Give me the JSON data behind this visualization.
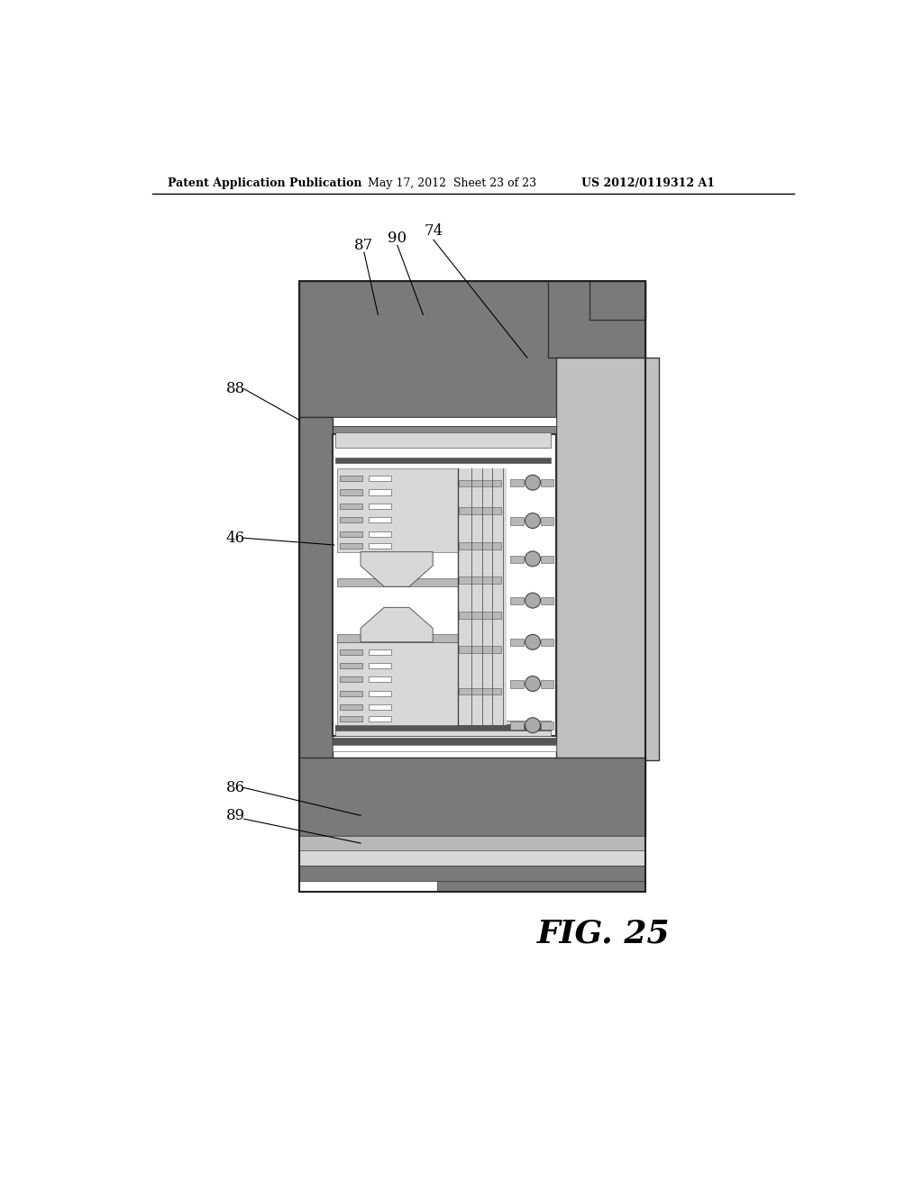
{
  "bg_color": "#ffffff",
  "header_left": "Patent Application Publication",
  "header_mid": "May 17, 2012  Sheet 23 of 23",
  "header_right": "US 2012/0119312 A1",
  "fig_label": "FIG. 25",
  "colors": {
    "dark_gray": "#7a7a7a",
    "medium_gray": "#959595",
    "light_gray": "#b8b8b8",
    "very_light_gray": "#d8d8d8",
    "cap_gray": "#c0c0c0",
    "white": "#ffffff",
    "border": "#333333",
    "dark_border": "#222222",
    "circle_fill": "#aaaaaa",
    "inner_dark": "#888888"
  }
}
